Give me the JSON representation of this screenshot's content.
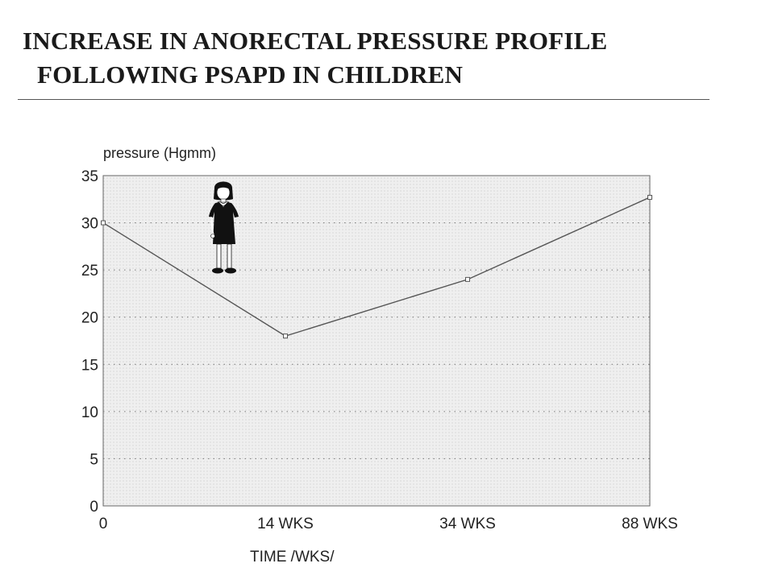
{
  "header": {
    "title_line1": "INCREASE IN ANORECTAL PRESSURE PROFILE",
    "title_line2": "FOLLOWING PSAPD IN CHILDREN"
  },
  "chart_data": {
    "type": "line",
    "ylabel": "pressure (Hgmm)",
    "xlabel": "TIME /WKS/",
    "categories": [
      "0",
      "14 WKS",
      "34 WKS",
      "88 WKS"
    ],
    "series": [
      {
        "values": [
          30,
          18,
          24,
          32.7
        ]
      }
    ],
    "ylim": [
      0,
      35
    ],
    "yticks": [
      "0",
      "5",
      "10",
      "15",
      "20",
      "25",
      "30",
      "35"
    ],
    "grid": true,
    "colors": {
      "line": "#555555",
      "plot_bg": "#ececec",
      "grid": "#777777"
    },
    "icon": "girl-figure-icon"
  }
}
